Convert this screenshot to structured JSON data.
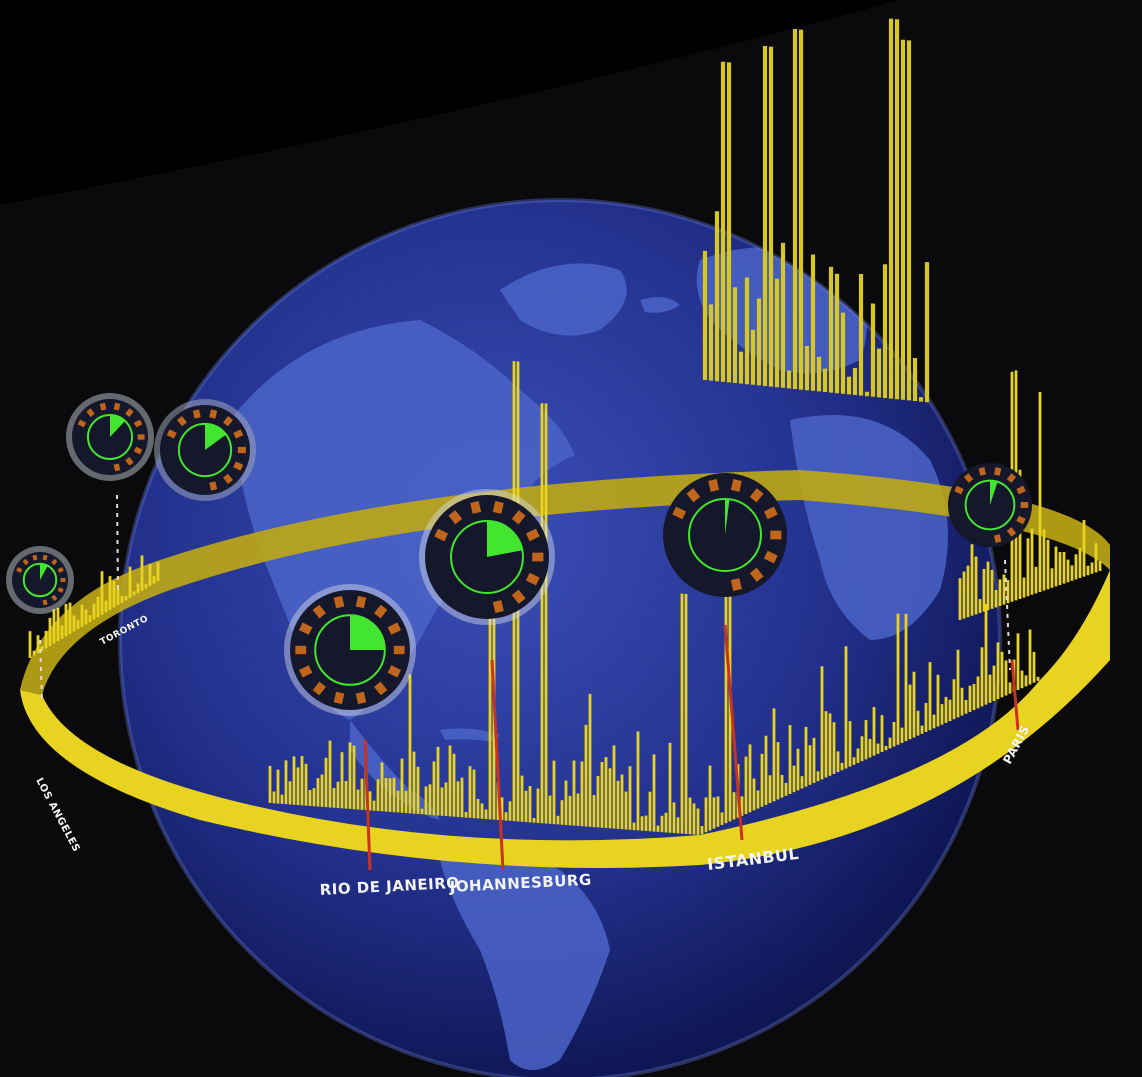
{
  "scene": {
    "city_labels": [
      "RIO DE JANEIRO",
      "JOHANNESBURG",
      "ISTANBUL",
      "PARIS",
      "LOS ANGELES",
      "TORONTO"
    ]
  },
  "colors": {
    "background": "#000000",
    "ocean": "#1f2e8a",
    "land": "#4a63c9",
    "ring": "#e8d320",
    "ring_shadow": "#8a7a12",
    "gauge_green": "#43e62e",
    "gauge_orange": "#c0661c",
    "red_marker": "#c8321e"
  },
  "gauges": [
    {
      "name": "gauge-toronto",
      "level": 0.12
    },
    {
      "name": "gauge-north",
      "level": 0.15
    },
    {
      "name": "gauge-la",
      "level": 0.08
    },
    {
      "name": "gauge-rio",
      "level": 0.25
    },
    {
      "name": "gauge-johannesburg",
      "level": 0.22
    },
    {
      "name": "gauge-istanbul",
      "level": 0.02
    },
    {
      "name": "gauge-paris",
      "level": 0.05
    }
  ]
}
